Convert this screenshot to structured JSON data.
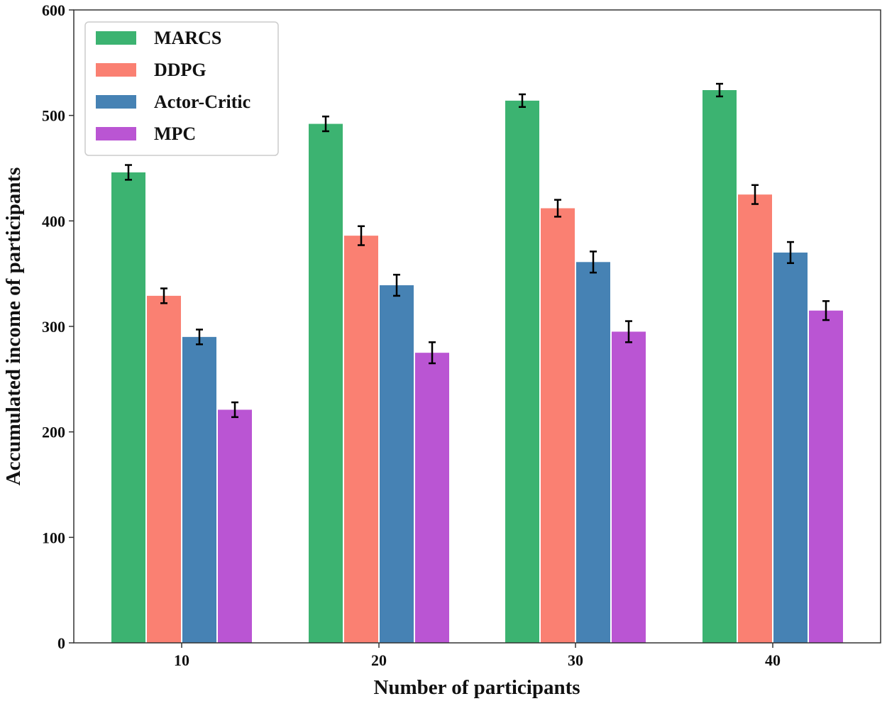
{
  "chart_data": {
    "type": "bar",
    "xlabel": "Number of participants",
    "ylabel": "Accumulated income of participants",
    "categories": [
      "10",
      "20",
      "30",
      "40"
    ],
    "ylim": [
      0,
      600
    ],
    "yticks": [
      "0",
      "100",
      "200",
      "300",
      "400",
      "500",
      "600"
    ],
    "legend_position": "top-left",
    "grid": false,
    "series": [
      {
        "name": "MARCS",
        "color": "#3cb371",
        "values": [
          446,
          492,
          514,
          524
        ],
        "errors": [
          7,
          7,
          6,
          6
        ]
      },
      {
        "name": "DDPG",
        "color": "#fa8072",
        "values": [
          329,
          386,
          412,
          425
        ],
        "errors": [
          7,
          9,
          8,
          9
        ]
      },
      {
        "name": "Actor-Critic",
        "color": "#4682b4",
        "values": [
          290,
          339,
          361,
          370
        ],
        "errors": [
          7,
          10,
          10,
          10
        ]
      },
      {
        "name": "MPC",
        "color": "#ba55d3",
        "values": [
          221,
          275,
          295,
          315
        ],
        "errors": [
          7,
          10,
          10,
          9
        ]
      }
    ]
  }
}
